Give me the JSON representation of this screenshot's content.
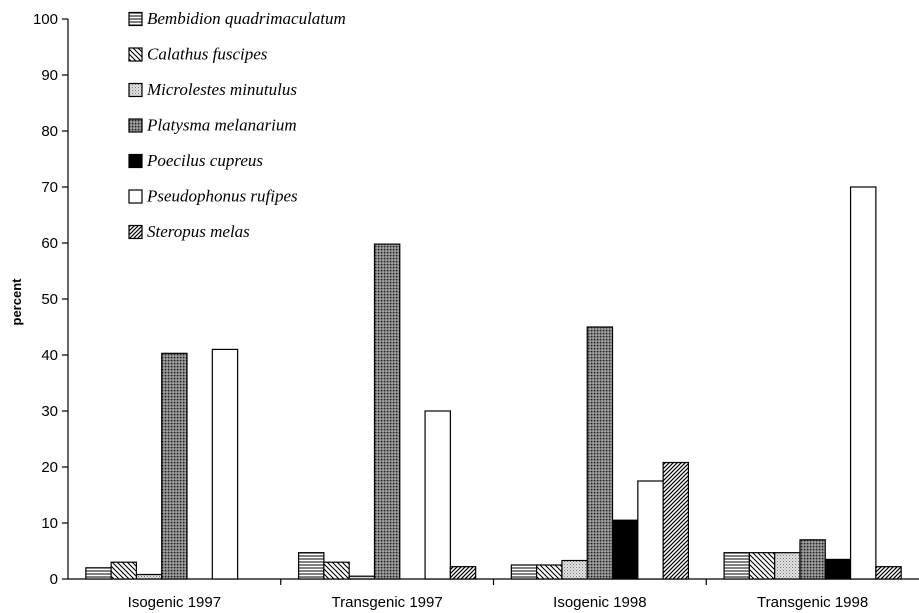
{
  "chart_data": {
    "type": "bar",
    "title": "",
    "xlabel": "",
    "ylabel": "percent",
    "ylim": [
      0,
      100
    ],
    "yticks": [
      0,
      10,
      20,
      30,
      40,
      50,
      60,
      70,
      80,
      90,
      100
    ],
    "grid": false,
    "legend_position": "top-left",
    "categories": [
      "Isogenic 1997",
      "Transgenic 1997",
      "Isogenic 1998",
      "Transgenic 1998"
    ],
    "series": [
      {
        "name": "Bembidion quadrimaculatum",
        "pattern": "horizontal-lines",
        "values": [
          2,
          4.7,
          2.5,
          4.7
        ]
      },
      {
        "name": "Calathus fuscipes",
        "pattern": "diagonal-back",
        "values": [
          3,
          3,
          2.5,
          4.7
        ]
      },
      {
        "name": "Microlestes minutulus",
        "pattern": "light-dots",
        "values": [
          0.8,
          0.5,
          3.3,
          4.7
        ]
      },
      {
        "name": "Platysma melanarium",
        "pattern": "dark-dots",
        "values": [
          40.3,
          59.8,
          45,
          7
        ]
      },
      {
        "name": "Poecilus cupreus",
        "pattern": "solid-black",
        "values": [
          0,
          0,
          10.5,
          3.5
        ]
      },
      {
        "name": "Pseudophonus rufipes",
        "pattern": "white",
        "values": [
          41,
          30,
          17.5,
          70
        ]
      },
      {
        "name": "Steropus melas",
        "pattern": "diagonal-forward",
        "values": [
          0,
          2.2,
          20.8,
          2.2
        ]
      }
    ]
  }
}
